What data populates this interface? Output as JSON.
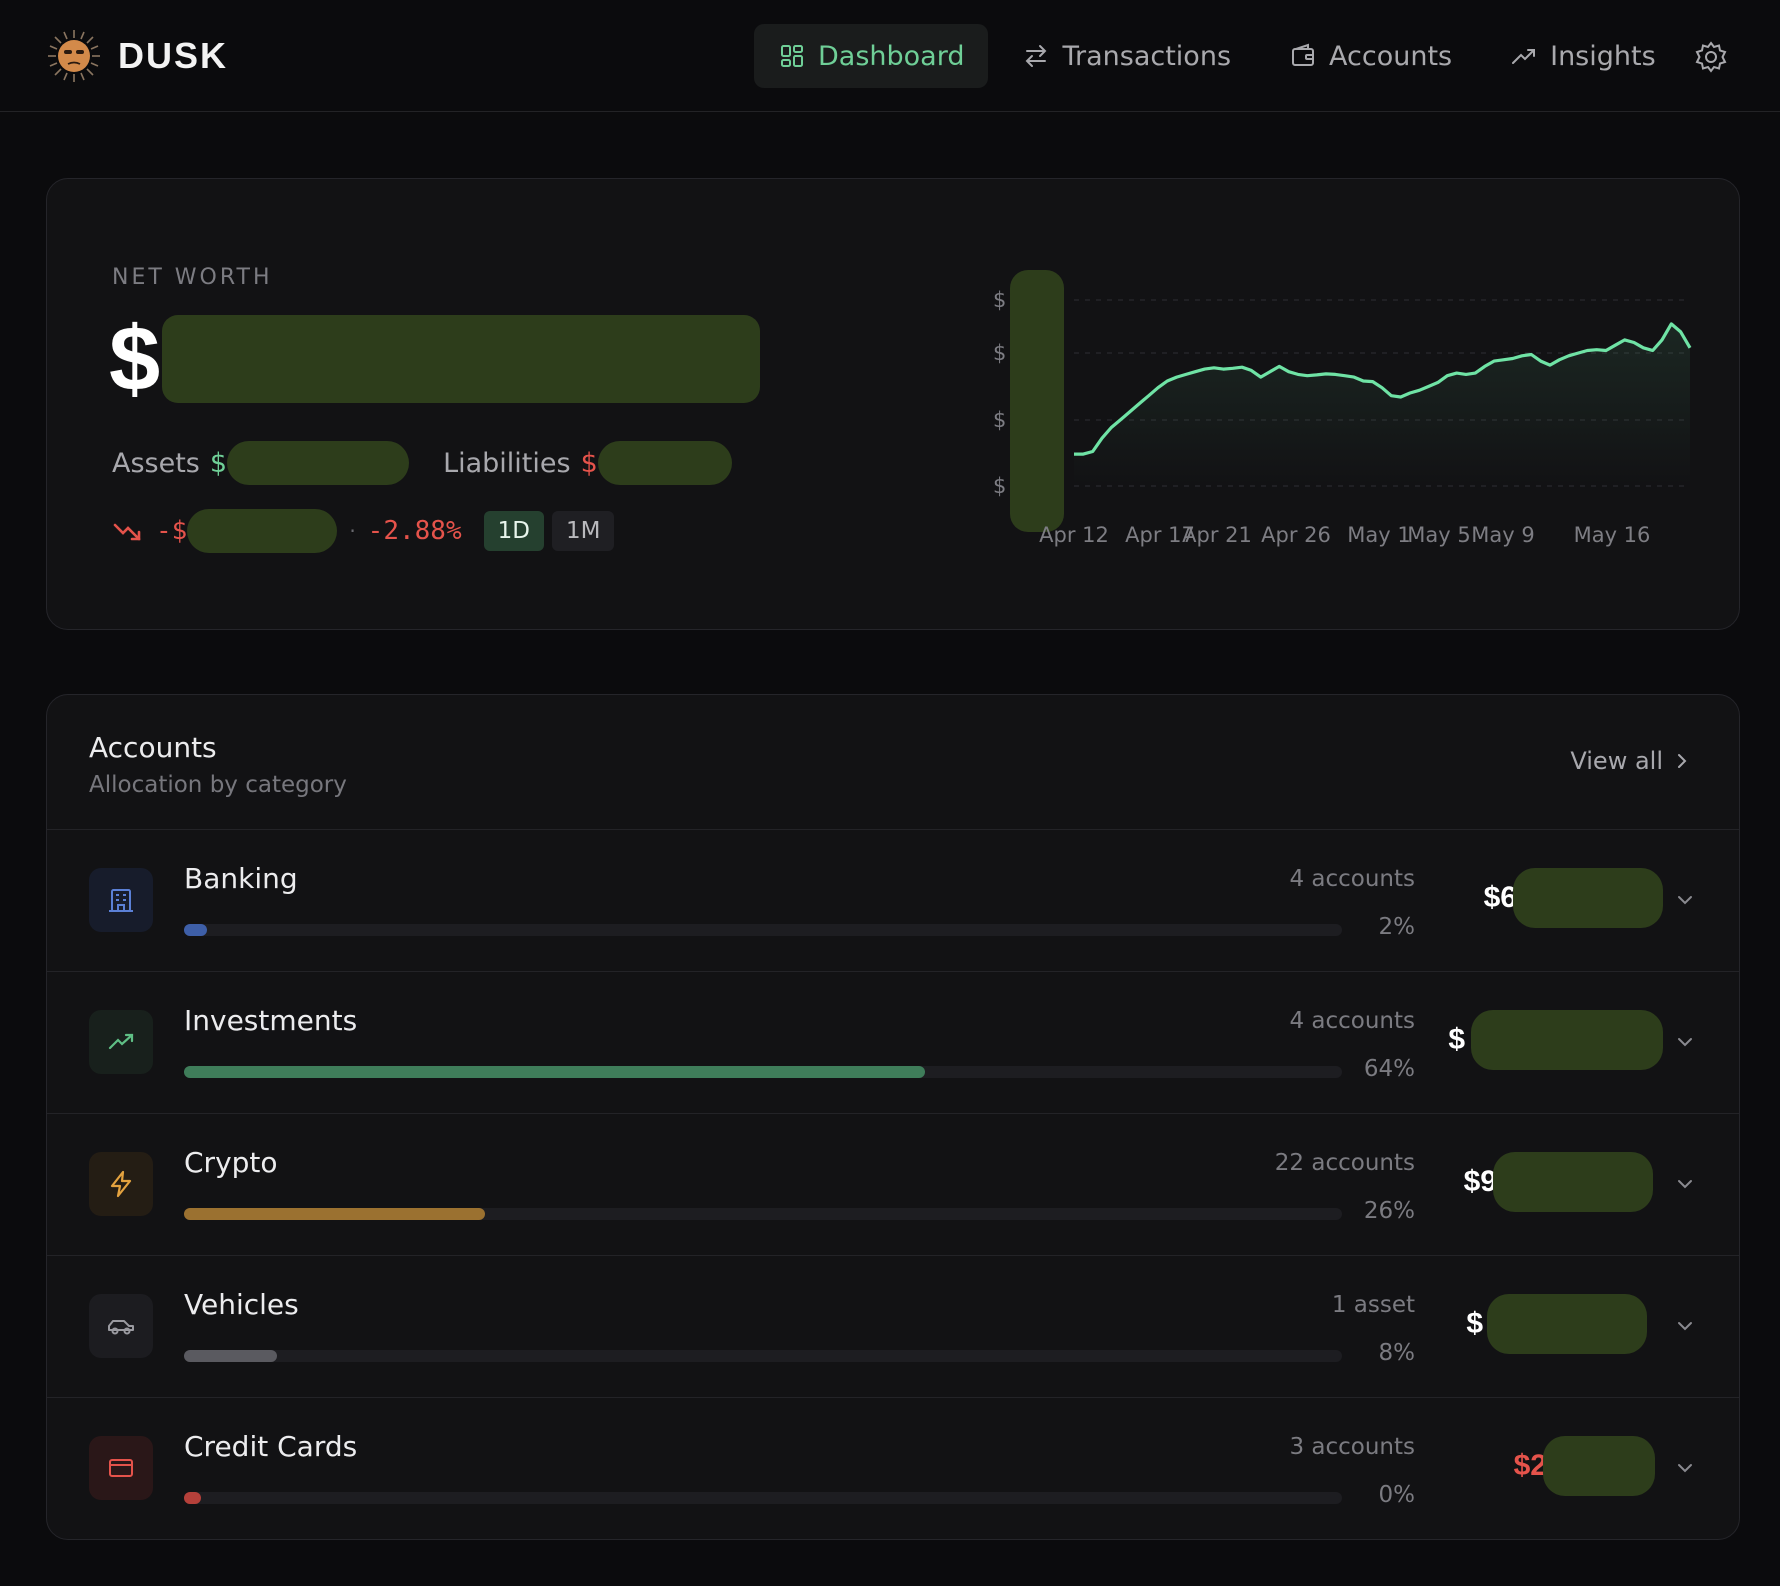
{
  "brand": {
    "name": "DUSK"
  },
  "nav": {
    "items": [
      {
        "label": "Dashboard",
        "icon": "dashboard-grid-icon",
        "active": true
      },
      {
        "label": "Transactions",
        "icon": "arrows-swap-icon",
        "active": false
      },
      {
        "label": "Accounts",
        "icon": "wallet-icon",
        "active": false
      },
      {
        "label": "Insights",
        "icon": "trend-up-icon",
        "active": false
      }
    ],
    "settings_icon": "gear-icon"
  },
  "net_worth": {
    "label": "NET WORTH",
    "currency_symbol": "$",
    "assets_label": "Assets",
    "assets_prefix": "$",
    "liabilities_label": "Liabilities",
    "liabilities_prefix": "$",
    "change_prefix": "-$",
    "change_pct": "-2.88%",
    "separator": "·",
    "ranges": [
      {
        "label": "1D",
        "selected": true
      },
      {
        "label": "1M",
        "selected": false
      }
    ]
  },
  "chart_data": {
    "type": "area",
    "x_ticks": [
      "Apr 12",
      "Apr 17",
      "Apr 21",
      "Apr 26",
      "May 1",
      "May 5",
      "May 9",
      "May 16"
    ],
    "y_tick_labels": [
      "$",
      "$",
      "$",
      "$"
    ],
    "grid": true,
    "line_color": "#6fe3a5",
    "series": [
      {
        "values": [
          12,
          12,
          13,
          18,
          22,
          25,
          28,
          31,
          34,
          37,
          39.5,
          41,
          42,
          43,
          44,
          44.5,
          44,
          44.3,
          44.7,
          43.5,
          41,
          43,
          45,
          43,
          42,
          41.5,
          41.8,
          42.2,
          42,
          41.5,
          41,
          39.5,
          39.3,
          37,
          34,
          33.5,
          35,
          36,
          37.5,
          39,
          41.5,
          42.5,
          42,
          42.5,
          45,
          47,
          47.5,
          48,
          49,
          49.5,
          47,
          45.5,
          47.5,
          49,
          50,
          51,
          51.3,
          51,
          53,
          55,
          54,
          52,
          51,
          55,
          61,
          58,
          52
        ]
      }
    ],
    "ylim": [
      0,
      70
    ]
  },
  "accounts_section": {
    "title": "Accounts",
    "subtitle": "Allocation by category",
    "view_all": "View all",
    "categories": [
      {
        "name": "Banking",
        "count": "4 accounts",
        "pct": "2%",
        "fill": 0.02,
        "color": "#3e5fa8",
        "icon": "bank-building-icon",
        "icon_color": "#5b80d6",
        "icon_bg": "#171c2b",
        "amount_prefix": "$6",
        "negative": false
      },
      {
        "name": "Investments",
        "count": "4 accounts",
        "pct": "64%",
        "fill": 0.64,
        "color": "#3f7d5a",
        "icon": "trend-up-icon",
        "icon_color": "#5fbf85",
        "icon_bg": "#18201c",
        "amount_prefix": "$",
        "negative": false
      },
      {
        "name": "Crypto",
        "count": "22 accounts",
        "pct": "26%",
        "fill": 0.26,
        "color": "#9b7130",
        "icon": "lightning-icon",
        "icon_color": "#e3a23f",
        "icon_bg": "#241d14",
        "amount_prefix": "$9",
        "negative": false
      },
      {
        "name": "Vehicles",
        "count": "1 asset",
        "pct": "8%",
        "fill": 0.08,
        "color": "#5a5a60",
        "icon": "car-icon",
        "icon_color": "#9a9aa0",
        "icon_bg": "#1c1c20",
        "amount_prefix": "$",
        "negative": false
      },
      {
        "name": "Credit Cards",
        "count": "3 accounts",
        "pct": "0%",
        "fill": 0.0,
        "color": "#b5403a",
        "icon": "credit-card-icon",
        "icon_color": "#e5534b",
        "icon_bg": "#2a1718",
        "amount_prefix": "$2",
        "negative": true
      }
    ]
  }
}
